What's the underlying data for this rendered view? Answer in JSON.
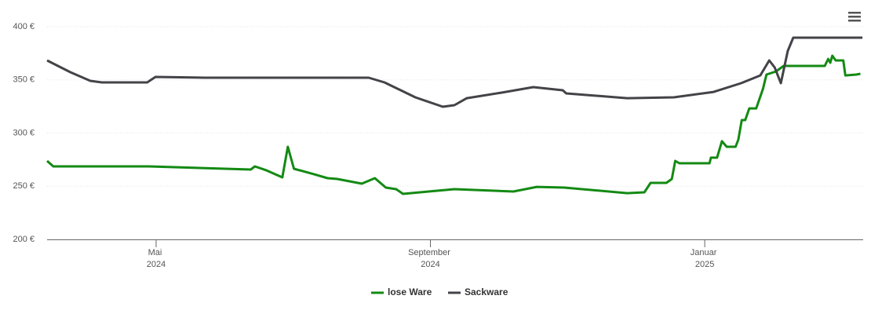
{
  "chart_data": {
    "type": "line",
    "x_unit_note_free": null,
    "xlim": [
      3.41,
      15.31
    ],
    "xticks": [
      {
        "value": 5,
        "label": "Mai 2024"
      },
      {
        "value": 9,
        "label": "September 2024"
      },
      {
        "value": 13,
        "label": "Januar 2025"
      }
    ],
    "ylim": [
      200,
      400
    ],
    "yticks": [
      {
        "value": 200,
        "label": "200 €"
      },
      {
        "value": 250,
        "label": "250 €"
      },
      {
        "value": 300,
        "label": "300 €"
      },
      {
        "value": 350,
        "label": "350 €"
      },
      {
        "value": 400,
        "label": "400 €"
      }
    ],
    "grid": true,
    "legend": "bottom",
    "series": [
      {
        "name": "lose Ware",
        "color": "#138a13",
        "x": [
          3.41,
          3.5,
          4.9,
          6.38,
          6.44,
          6.61,
          6.84,
          6.92,
          7.01,
          7.3,
          7.5,
          7.64,
          8.0,
          8.19,
          8.35,
          8.5,
          8.6,
          9.35,
          10.21,
          10.55,
          10.95,
          11.87,
          12.12,
          12.21,
          12.44,
          12.52,
          12.57,
          12.63,
          13.07,
          13.09,
          13.18,
          13.25,
          13.32,
          13.45,
          13.49,
          13.54,
          13.59,
          13.65,
          13.75,
          13.85,
          13.9,
          14.04,
          14.15,
          14.75,
          14.8,
          14.83,
          14.86,
          14.91,
          15.02,
          15.05,
          15.21,
          15.27
        ],
        "values": [
          273.8,
          268.6,
          268.6,
          265.7,
          268.6,
          264.9,
          258.3,
          287.1,
          266.4,
          261.3,
          257.6,
          256.8,
          252.4,
          257.6,
          248.7,
          247.2,
          242.8,
          247.2,
          245.0,
          249.4,
          248.7,
          243.5,
          244.3,
          253.1,
          253.1,
          256.8,
          273.8,
          271.6,
          271.6,
          276.8,
          276.8,
          292.3,
          287.1,
          287.1,
          293.7,
          312.2,
          312.2,
          323.2,
          323.2,
          341.7,
          355.0,
          357.9,
          363.1,
          363.1,
          369.7,
          366.1,
          372.7,
          368.3,
          368.3,
          354.2,
          355.0,
          355.7
        ]
      },
      {
        "name": "Sackware",
        "color": "#434348",
        "x": [
          3.41,
          3.75,
          4.04,
          4.21,
          4.87,
          4.99,
          5.7,
          8.1,
          8.33,
          8.78,
          9.18,
          9.35,
          9.53,
          10.04,
          10.5,
          10.93,
          10.98,
          11.87,
          12.55,
          13.13,
          13.53,
          13.81,
          13.94,
          14.02,
          14.11,
          14.21,
          14.29,
          15.3
        ],
        "values": [
          368.3,
          357.2,
          349.1,
          347.6,
          347.6,
          352.8,
          352.0,
          352.0,
          347.6,
          333.6,
          324.7,
          326.2,
          332.8,
          338.0,
          343.2,
          340.2,
          337.3,
          332.8,
          333.6,
          338.7,
          346.9,
          354.2,
          368.3,
          361.6,
          346.9,
          377.1,
          389.7,
          389.7
        ]
      }
    ]
  }
}
